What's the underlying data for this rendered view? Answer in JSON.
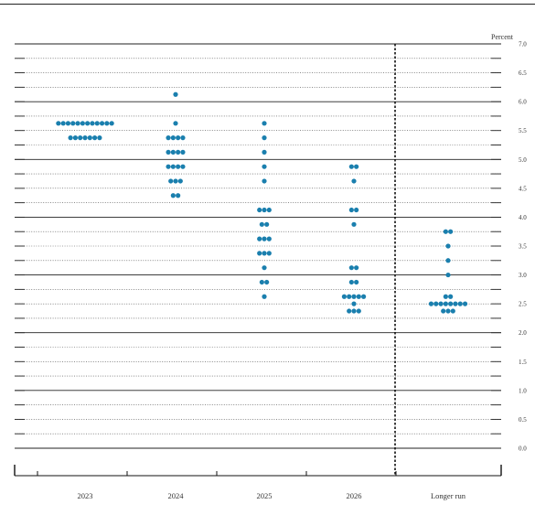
{
  "chart_data": {
    "type": "scatter",
    "subtype": "dot-plot",
    "title": "",
    "xlabel": "",
    "ylabel": "Percent",
    "ylim": [
      0,
      7
    ],
    "y_ticks": [
      0.0,
      0.5,
      1.0,
      1.5,
      2.0,
      2.5,
      3.0,
      3.5,
      4.0,
      4.5,
      5.0,
      5.5,
      6.0,
      6.5,
      7.0
    ],
    "y_tick_labels": [
      "0.0",
      "0.5",
      "1.0",
      "1.5",
      "2.0",
      "2.5",
      "3.0",
      "3.5",
      "4.0",
      "4.5",
      "5.0",
      "5.5",
      "6.0",
      "6.5",
      "7.0"
    ],
    "categories": [
      "2023",
      "2024",
      "2025",
      "2026",
      "Longer run"
    ],
    "grid": "horizontal dotted every 0.25; solid every 1.0",
    "dot_color": "#1a7fae",
    "values": [
      [
        {
          "y": 5.625,
          "count": 12
        },
        {
          "y": 5.375,
          "count": 7
        }
      ],
      [
        {
          "y": 6.125,
          "count": 1
        },
        {
          "y": 5.625,
          "count": 1
        },
        {
          "y": 5.375,
          "count": 4
        },
        {
          "y": 5.125,
          "count": 4
        },
        {
          "y": 4.875,
          "count": 4
        },
        {
          "y": 4.625,
          "count": 3
        },
        {
          "y": 4.375,
          "count": 2
        }
      ],
      [
        {
          "y": 5.625,
          "count": 1
        },
        {
          "y": 5.375,
          "count": 1
        },
        {
          "y": 5.125,
          "count": 1
        },
        {
          "y": 4.875,
          "count": 1
        },
        {
          "y": 4.625,
          "count": 1
        },
        {
          "y": 4.125,
          "count": 3
        },
        {
          "y": 3.875,
          "count": 2
        },
        {
          "y": 3.625,
          "count": 3
        },
        {
          "y": 3.375,
          "count": 3
        },
        {
          "y": 3.125,
          "count": 1
        },
        {
          "y": 2.875,
          "count": 2
        },
        {
          "y": 2.625,
          "count": 1
        }
      ],
      [
        {
          "y": 4.875,
          "count": 2
        },
        {
          "y": 4.625,
          "count": 1
        },
        {
          "y": 4.125,
          "count": 2
        },
        {
          "y": 3.875,
          "count": 1
        },
        {
          "y": 3.125,
          "count": 2
        },
        {
          "y": 2.875,
          "count": 2
        },
        {
          "y": 2.625,
          "count": 5
        },
        {
          "y": 2.5,
          "count": 1
        },
        {
          "y": 2.375,
          "count": 3
        }
      ],
      [
        {
          "y": 3.75,
          "count": 2
        },
        {
          "y": 3.5,
          "count": 1
        },
        {
          "y": 3.25,
          "count": 1
        },
        {
          "y": 3.0,
          "count": 1
        },
        {
          "y": 2.625,
          "count": 2
        },
        {
          "y": 2.5,
          "count": 8
        },
        {
          "y": 2.375,
          "count": 3
        }
      ]
    ]
  }
}
